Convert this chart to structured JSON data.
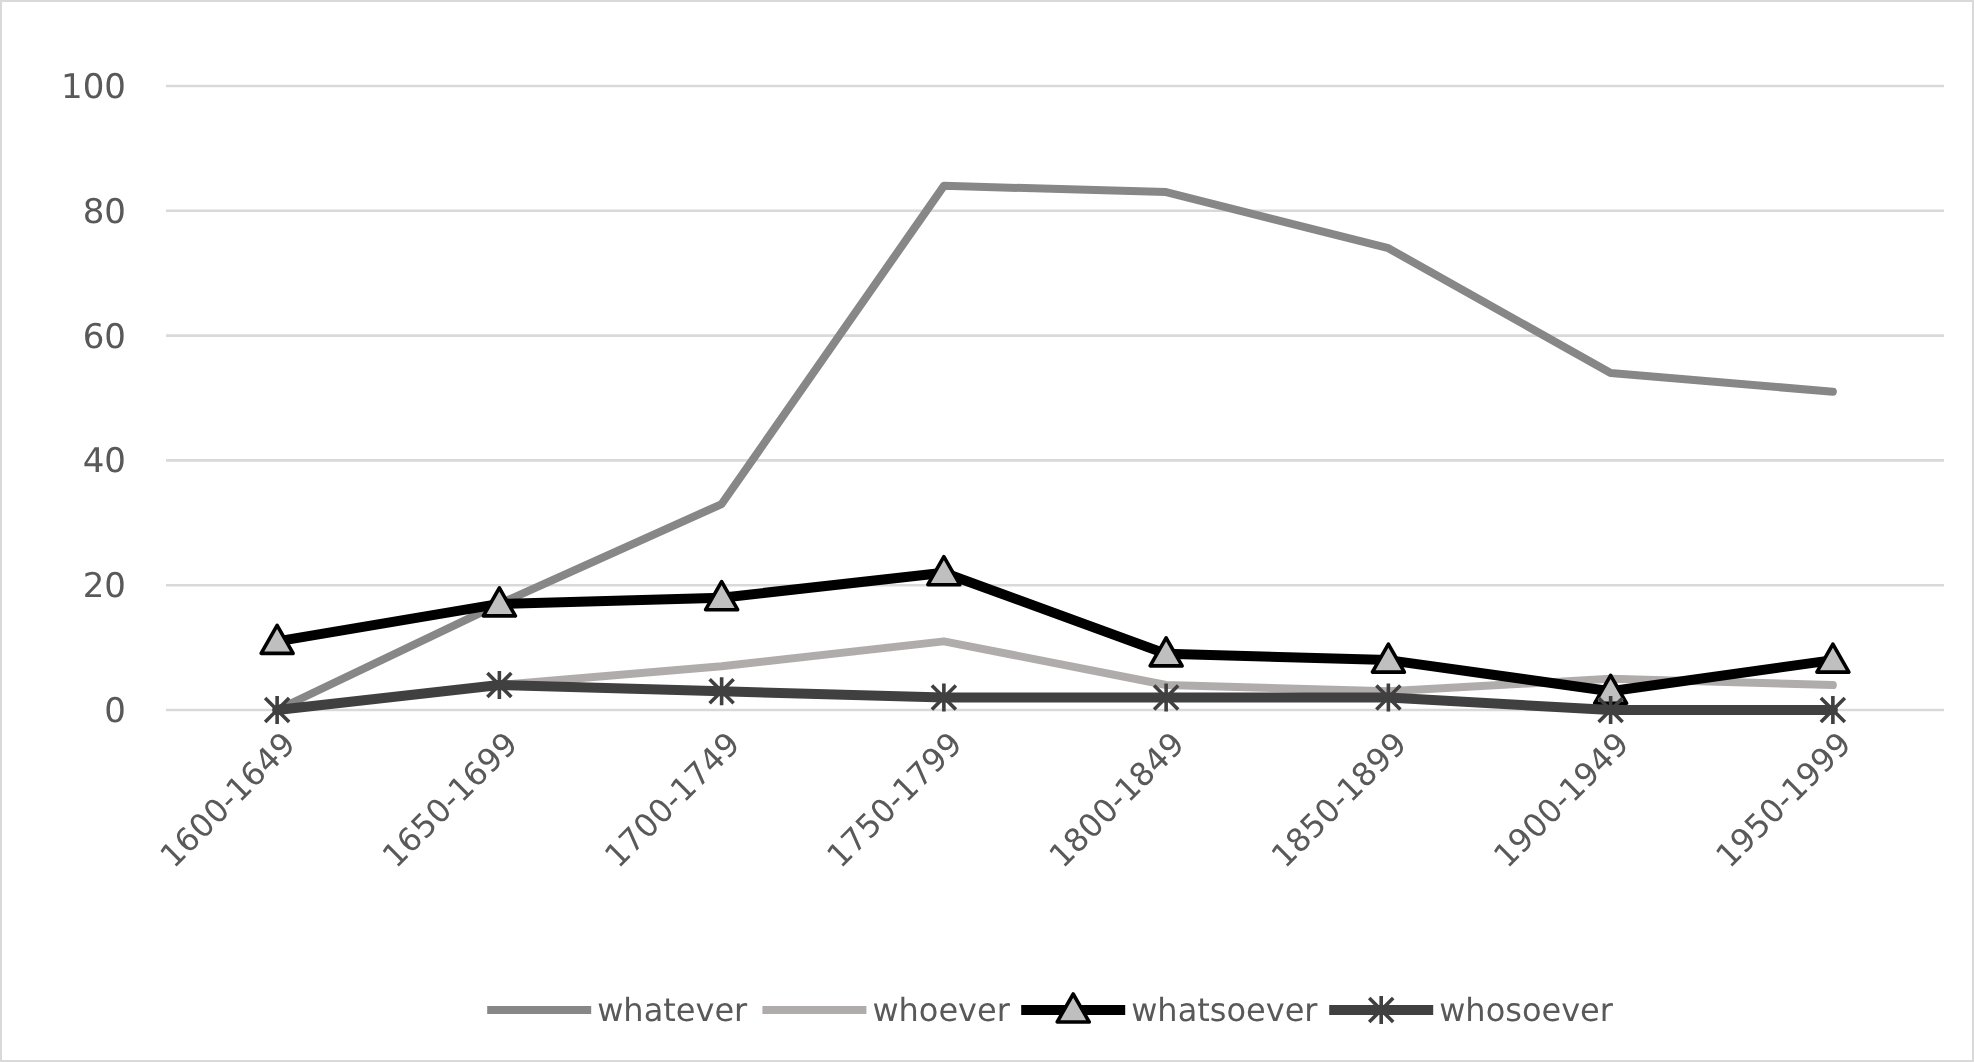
{
  "chart_data": {
    "type": "line",
    "categories": [
      "1600-1649",
      "1650-1699",
      "1700-1749",
      "1750-1799",
      "1800-1849",
      "1850-1899",
      "1900-1949",
      "1950-1999"
    ],
    "ylim": [
      0,
      100
    ],
    "yticks": [
      0,
      20,
      40,
      60,
      80,
      100
    ],
    "grid": "y",
    "legend": "bottom",
    "series": [
      {
        "name": "whatever",
        "color": "#878787",
        "marker": "none",
        "values": [
          0,
          17,
          33,
          84,
          83,
          74,
          54,
          51
        ]
      },
      {
        "name": "whoever",
        "color": "#b0acac",
        "marker": "none",
        "values": [
          0,
          4,
          7,
          11,
          4,
          3,
          5,
          4
        ]
      },
      {
        "name": "whatsoever",
        "color": "#000000",
        "marker": "triangle",
        "values": [
          11,
          17,
          18,
          22,
          9,
          8,
          3,
          8
        ]
      },
      {
        "name": "whosoever",
        "color": "#404040",
        "marker": "cross",
        "values": [
          0,
          4,
          3,
          2,
          2,
          2,
          0,
          0
        ]
      }
    ]
  }
}
